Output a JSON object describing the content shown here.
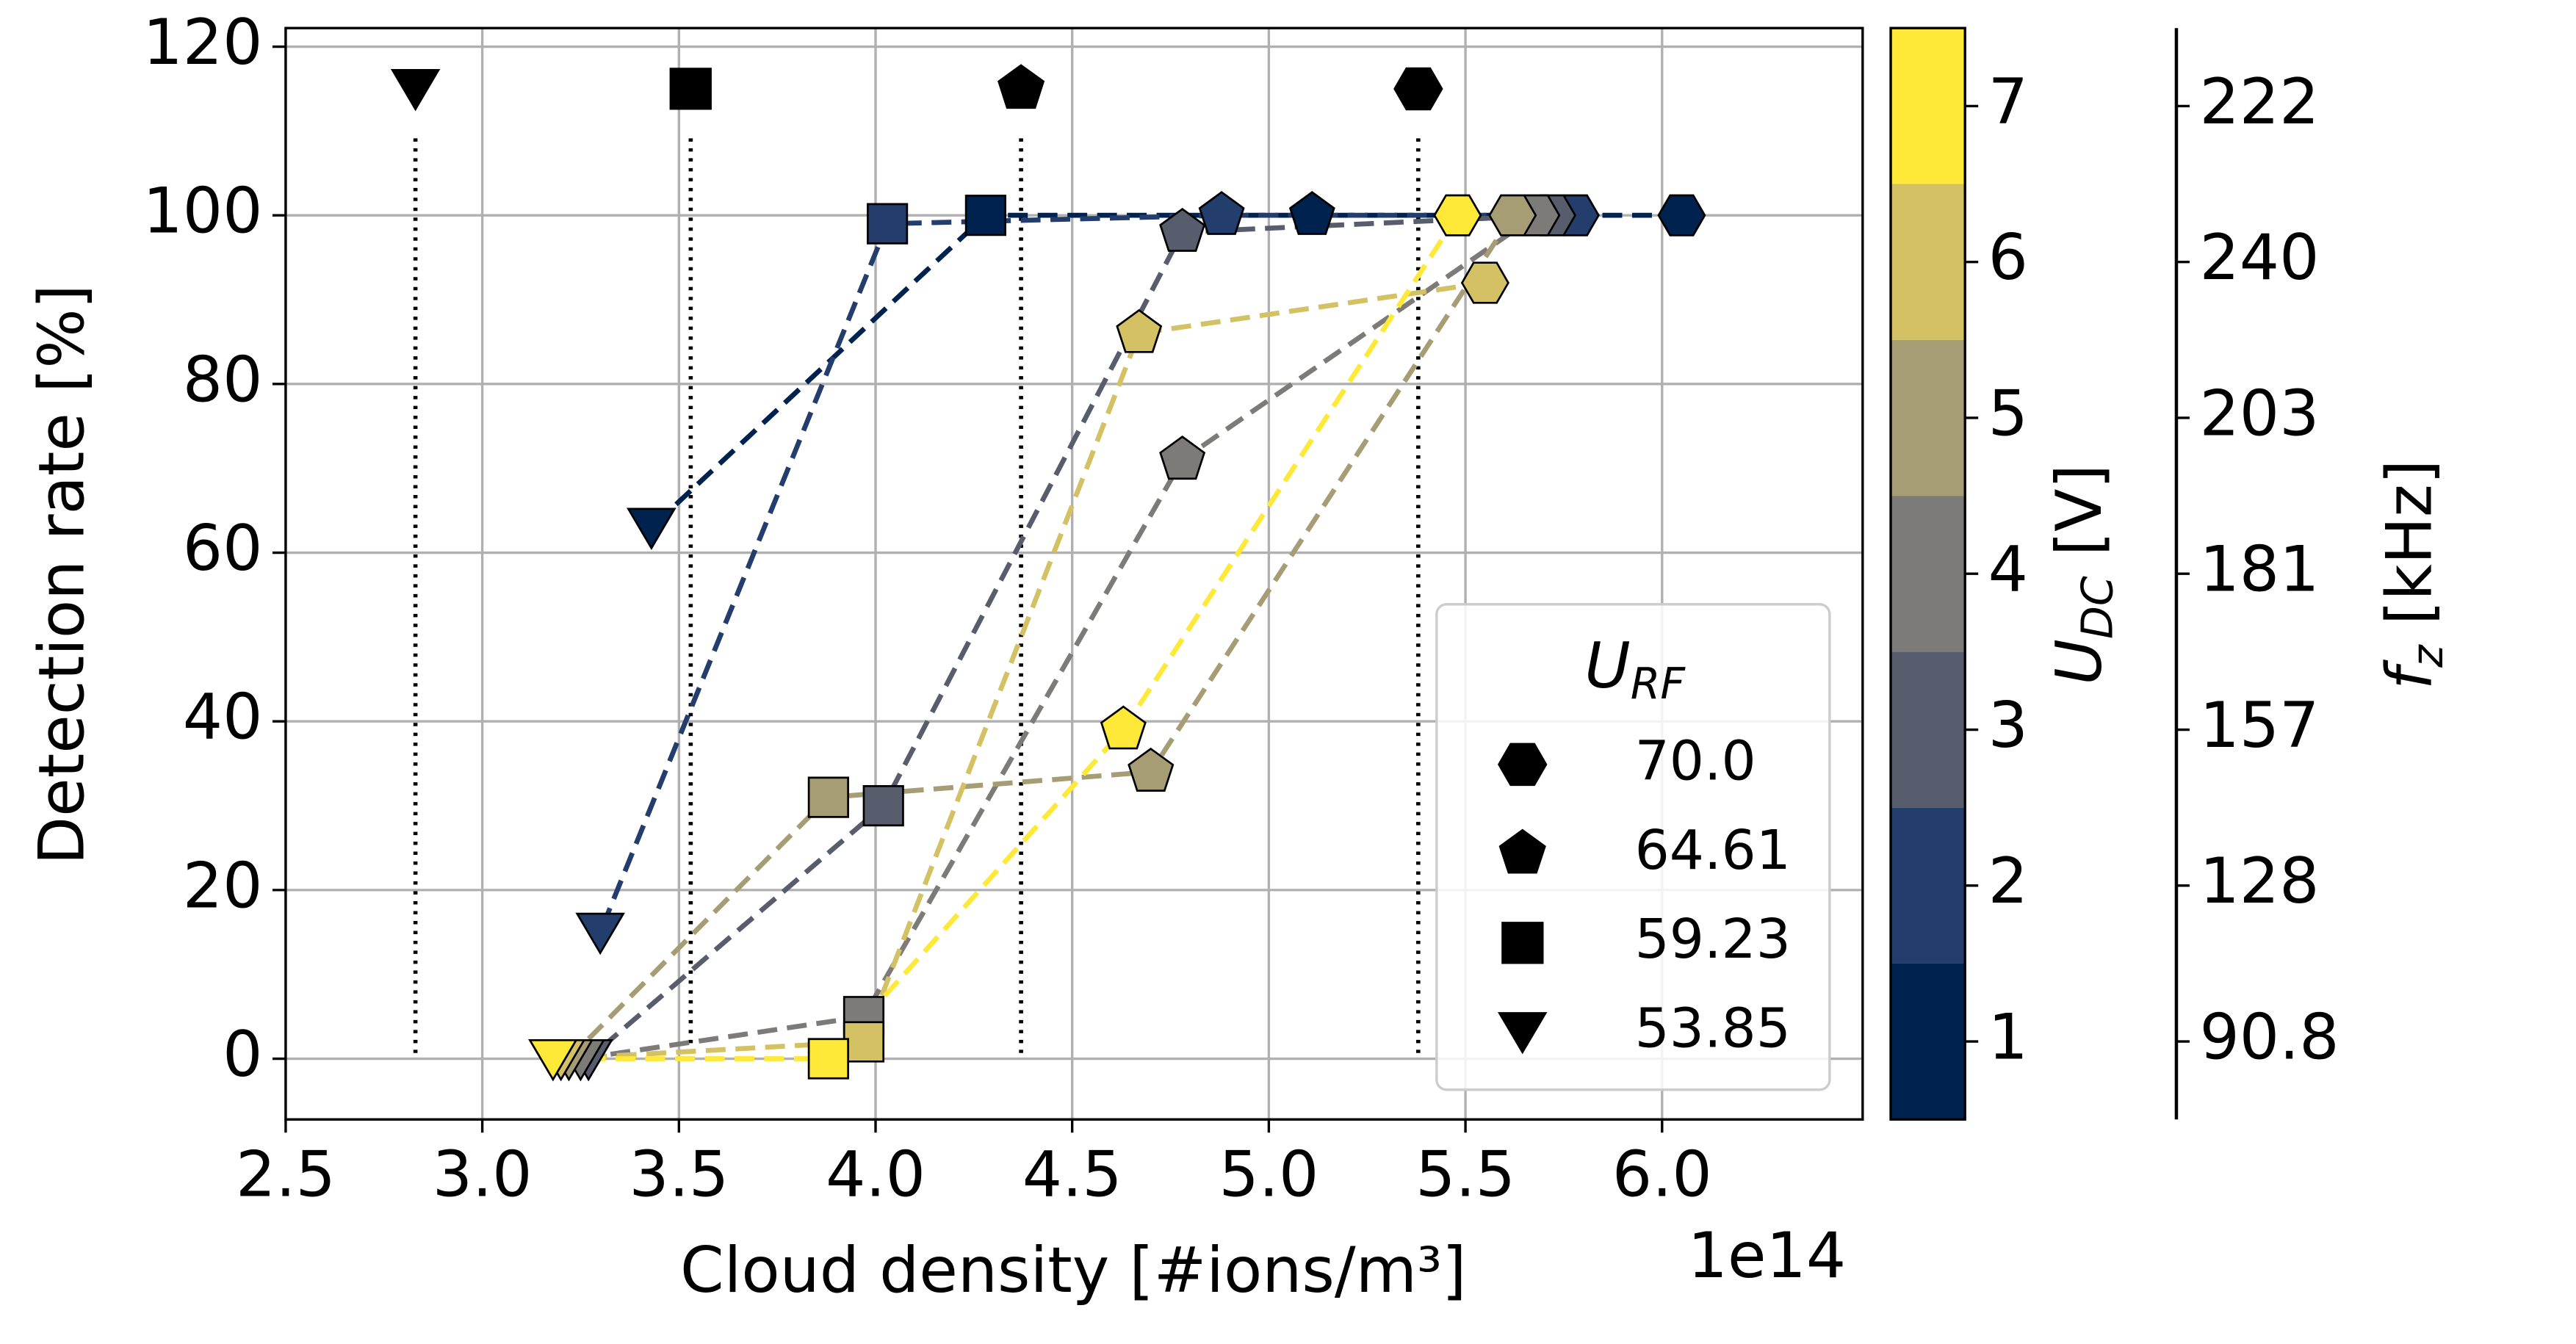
{
  "chart_data": {
    "type": "scatter",
    "xlabel": "Cloud density [#ions/m³]",
    "x_offset_label": "1e14",
    "ylabel": "Detection rate [%]",
    "xlim": [
      2.5,
      6.51
    ],
    "ylim": [
      -7.2,
      122.2
    ],
    "xticks": [
      2.5,
      {
        "value": 3,
        "label": "3.0"
      },
      3.5,
      {
        "value": 4,
        "label": "4.0"
      },
      4.5,
      {
        "value": 5,
        "label": "5.0"
      },
      5.5,
      {
        "value": 6,
        "label": "6.0"
      }
    ],
    "yticks": [
      0,
      20,
      40,
      60,
      80,
      100,
      120
    ],
    "grid": true,
    "legend": {
      "title": {
        "main": "U",
        "sub": "RF"
      },
      "corner": "lower right",
      "entries": [
        {
          "label": "70.0",
          "marker": "h",
          "ref_x": 5.38
        },
        {
          "label": "64.61",
          "marker": "p",
          "ref_x": 4.37
        },
        {
          "label": "59.23",
          "marker": "s",
          "ref_x": 3.53
        },
        {
          "label": "53.85",
          "marker": "v",
          "ref_x": 2.83
        }
      ]
    },
    "reference_y": 115,
    "series": [
      {
        "color": "#00224e",
        "x": [
          6.05,
          5.11,
          4.28,
          3.43
        ],
        "y": [
          100,
          100,
          100,
          63
        ]
      },
      {
        "color": "#233e6c",
        "x": [
          5.78,
          4.88,
          4.03,
          3.3
        ],
        "y": [
          100,
          100,
          99,
          15
        ]
      },
      {
        "color": "#575d6d",
        "x": [
          5.72,
          4.78,
          4.02,
          3.27
        ],
        "y": [
          100,
          98,
          30,
          0
        ]
      },
      {
        "color": "#7c7b78",
        "x": [
          5.68,
          4.78,
          3.97,
          3.25
        ],
        "y": [
          100,
          71,
          5,
          0
        ]
      },
      {
        "color": "#a69d75",
        "x": [
          5.62,
          4.7,
          3.88,
          3.22
        ],
        "y": [
          100,
          34,
          31,
          0
        ]
      },
      {
        "color": "#d3c164",
        "x": [
          5.55,
          4.67,
          3.97,
          3.2
        ],
        "y": [
          92,
          86,
          2,
          0
        ]
      },
      {
        "color": "#fee838",
        "x": [
          5.48,
          4.63,
          3.88,
          3.18
        ],
        "y": [
          100,
          39,
          0,
          0
        ]
      }
    ],
    "colorbar": {
      "label": {
        "main": "U",
        "sub": "DC",
        "unit": " [V]"
      },
      "colors": [
        "#00224e",
        "#233e6c",
        "#575d6d",
        "#7c7b78",
        "#a69d75",
        "#d3c164",
        "#fee838"
      ],
      "lim": [
        0.5,
        7.5
      ],
      "ticks": [
        1,
        2,
        3,
        4,
        5,
        6,
        7
      ],
      "secondary_label": {
        "main": "f",
        "sub": "z",
        "unit": " [kHz]"
      },
      "secondary_ticks": [
        {
          "value": 1,
          "label": "90.8"
        },
        {
          "value": 2,
          "label": "128"
        },
        {
          "value": 3,
          "label": "157"
        },
        {
          "value": 4,
          "label": "181"
        },
        {
          "value": 5,
          "label": "203"
        },
        {
          "value": 6,
          "label": "240"
        },
        {
          "value": 7,
          "label": "222"
        }
      ]
    }
  }
}
